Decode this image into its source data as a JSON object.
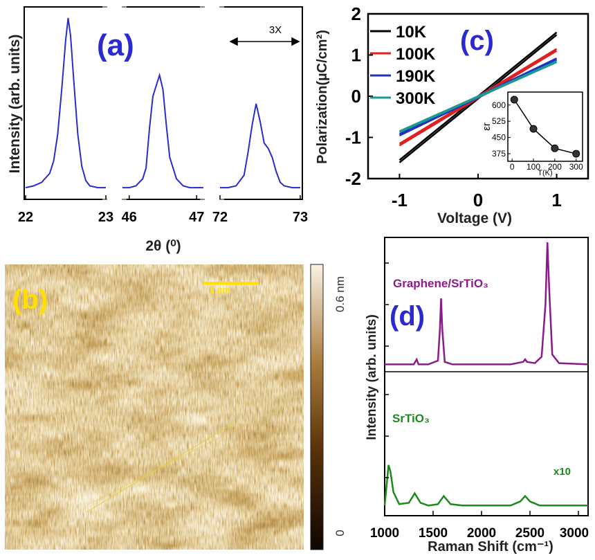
{
  "chart_data": [
    {
      "panel": "(a)",
      "type": "line",
      "ylabel": "Intensity (arb. units)",
      "xlabel": "2θ (⁰)",
      "annotation": "3X",
      "line_color": "#2a2ad0",
      "segments": [
        {
          "xlim": [
            22,
            23
          ],
          "ticks": [
            "22",
            "23"
          ],
          "tick_values": [
            22,
            23
          ],
          "x": [
            22.0,
            22.1,
            22.2,
            22.3,
            22.35,
            22.4,
            22.45,
            22.5,
            22.53,
            22.56,
            22.6,
            22.65,
            22.7,
            22.75,
            22.8,
            22.9,
            23.0
          ],
          "y": [
            0.05,
            0.06,
            0.08,
            0.13,
            0.2,
            0.35,
            0.6,
            0.88,
            1.0,
            0.9,
            0.65,
            0.35,
            0.17,
            0.09,
            0.06,
            0.05,
            0.05
          ]
        },
        {
          "xlim": [
            45.9,
            47.1
          ],
          "ticks": [
            "46",
            "47"
          ],
          "tick_values": [
            46,
            47
          ],
          "x": [
            45.9,
            46.0,
            46.1,
            46.2,
            46.25,
            46.3,
            46.35,
            46.4,
            46.45,
            46.5,
            46.55,
            46.6,
            46.7,
            46.8,
            46.9,
            47.0,
            47.1
          ],
          "y": [
            0.05,
            0.05,
            0.06,
            0.1,
            0.16,
            0.38,
            0.56,
            0.62,
            0.68,
            0.6,
            0.4,
            0.22,
            0.1,
            0.06,
            0.05,
            0.05,
            0.05
          ]
        },
        {
          "xlim": [
            72,
            73
          ],
          "ticks": [
            "72",
            "73"
          ],
          "tick_values": [
            72,
            73
          ],
          "x": [
            72.0,
            72.1,
            72.2,
            72.3,
            72.35,
            72.4,
            72.45,
            72.5,
            72.55,
            72.6,
            72.65,
            72.7,
            72.75,
            72.8,
            72.9,
            73.0
          ],
          "y": [
            0.05,
            0.05,
            0.06,
            0.12,
            0.25,
            0.4,
            0.52,
            0.42,
            0.3,
            0.27,
            0.22,
            0.14,
            0.08,
            0.06,
            0.05,
            0.05
          ]
        }
      ]
    },
    {
      "panel": "(b)",
      "type": "heatmap",
      "scalebar_label": "1 µm",
      "colorbar_max_label": "0.6 nm",
      "colorbar_min_label": "0"
    },
    {
      "panel": "(c)",
      "type": "line",
      "ylabel": "Polarization(µC/cm²)",
      "xlabel": "Voltage (V)",
      "xlim": [
        -1.4,
        1.4
      ],
      "ylim": [
        -2,
        2
      ],
      "xticks": [
        -1,
        0,
        1
      ],
      "xtick_labels": [
        "-1",
        "0",
        "1"
      ],
      "yticks": [
        -2,
        -1,
        0,
        1,
        2
      ],
      "ytick_labels": [
        "-2",
        "-1",
        "0",
        "1",
        "2"
      ],
      "series": [
        {
          "name": "10K",
          "color": "#000000",
          "x": [
            -1,
            1
          ],
          "y": [
            -1.55,
            1.55
          ]
        },
        {
          "name": "100K",
          "color": "#e02020",
          "x": [
            -1,
            1
          ],
          "y": [
            -1.15,
            1.15
          ]
        },
        {
          "name": "190K",
          "color": "#2030c0",
          "x": [
            -1,
            1
          ],
          "y": [
            -0.92,
            0.92
          ]
        },
        {
          "name": "300K",
          "color": "#1a9a90",
          "x": [
            -1,
            1
          ],
          "y": [
            -0.85,
            0.85
          ]
        }
      ],
      "inset": {
        "type": "scatter",
        "ylabel": "εr",
        "xlabel": "T(K)",
        "xlim": [
          -20,
          330
        ],
        "ylim": [
          340,
          660
        ],
        "xtick_labels": [
          "0",
          "100",
          "200",
          "300"
        ],
        "ytick_labels": [
          "375",
          "450",
          "525",
          "600"
        ],
        "x": [
          10,
          100,
          200,
          300
        ],
        "y": [
          625,
          490,
          400,
          375
        ]
      }
    },
    {
      "panel": "(d)",
      "type": "line",
      "ylabel": "Intensity (arb. units)",
      "xlabel": "Raman Shift (cm⁻¹)",
      "xlim": [
        1000,
        3100
      ],
      "xticks": [
        1000,
        1500,
        2000,
        2500,
        3000
      ],
      "xtick_labels": [
        "1000",
        "1500",
        "2000",
        "2500",
        "3000"
      ],
      "top_label": "Graphene/SrTiO₃",
      "bottom_label": "SrTiO₃",
      "bottom_annotation": "x10",
      "series": [
        {
          "name": "Graphene/SrTiO₃",
          "color": "#8b1a8b",
          "x": [
            1000,
            1300,
            1330,
            1350,
            1450,
            1550,
            1570,
            1582,
            1595,
            1620,
            1700,
            2300,
            2430,
            2450,
            2470,
            2550,
            2620,
            2660,
            2680,
            2700,
            2730,
            2800,
            3100
          ],
          "y": [
            0.02,
            0.02,
            0.06,
            0.02,
            0.02,
            0.05,
            0.3,
            0.55,
            0.3,
            0.04,
            0.02,
            0.02,
            0.04,
            0.06,
            0.04,
            0.03,
            0.08,
            0.5,
            1.0,
            0.6,
            0.1,
            0.03,
            0.02
          ]
        },
        {
          "name": "SrTiO₃",
          "color": "#1a8a1a",
          "x": [
            1000,
            1020,
            1040,
            1060,
            1090,
            1150,
            1250,
            1310,
            1370,
            1450,
            1550,
            1610,
            1680,
            1800,
            2000,
            2300,
            2400,
            2450,
            2500,
            2600,
            3100
          ],
          "y": [
            0.05,
            0.2,
            0.35,
            0.3,
            0.15,
            0.06,
            0.07,
            0.14,
            0.07,
            0.05,
            0.06,
            0.12,
            0.06,
            0.05,
            0.05,
            0.05,
            0.08,
            0.12,
            0.08,
            0.05,
            0.05
          ]
        }
      ]
    }
  ]
}
